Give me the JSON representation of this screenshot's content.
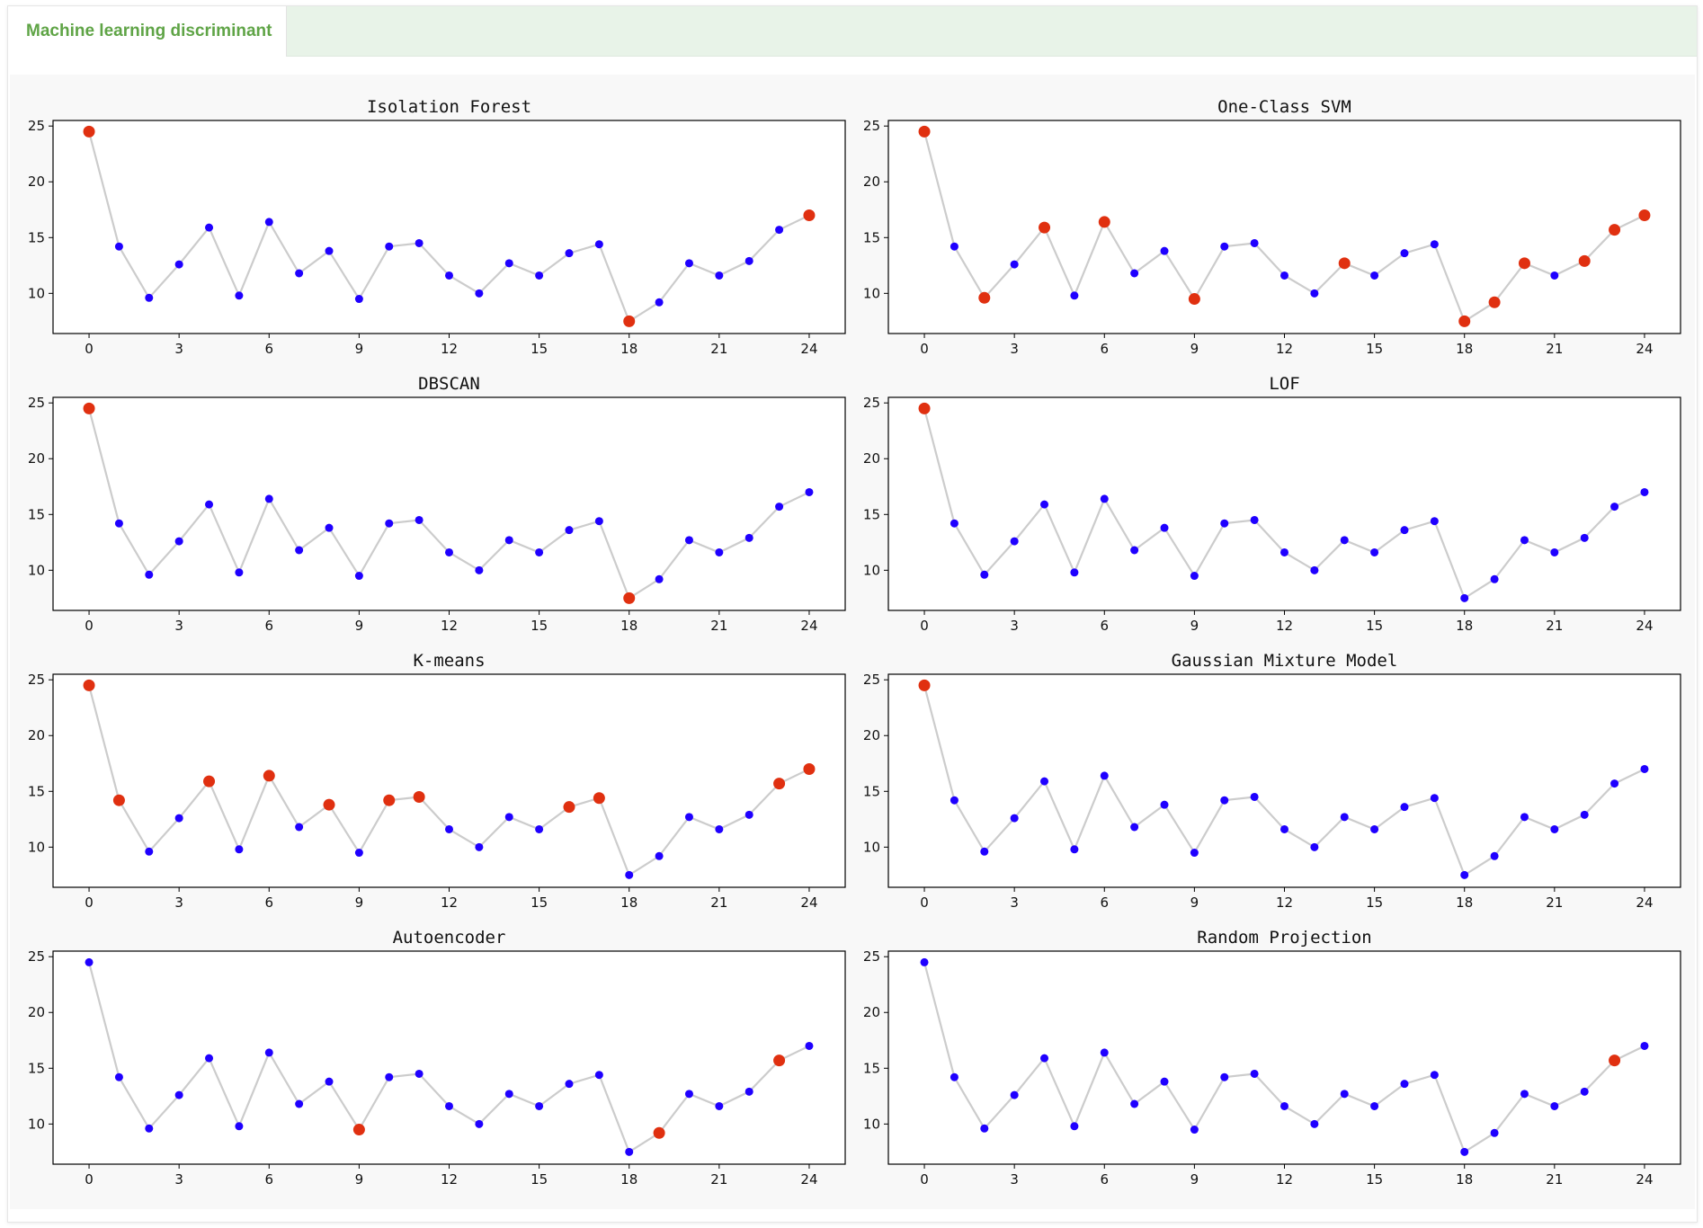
{
  "tabs": [
    {
      "label": "Machine learning discriminant",
      "active": true
    }
  ],
  "colors": {
    "line": "#cccccc",
    "normal": "#1f00ff",
    "anomaly": "#e03010"
  },
  "chart_data": [
    {
      "type": "scatter",
      "title": "Isolation Forest",
      "x": [
        0,
        1,
        2,
        3,
        4,
        5,
        6,
        7,
        8,
        9,
        10,
        11,
        12,
        13,
        14,
        15,
        16,
        17,
        18,
        19,
        20,
        21,
        22,
        23,
        24
      ],
      "y": [
        24.5,
        14.2,
        9.6,
        12.6,
        15.9,
        9.8,
        16.4,
        11.8,
        13.8,
        9.5,
        14.2,
        14.5,
        11.6,
        10.0,
        12.7,
        11.6,
        13.6,
        14.4,
        7.5,
        9.2,
        12.7,
        11.6,
        12.9,
        15.7,
        17.0
      ],
      "anomalies": [
        0,
        18,
        24
      ],
      "xticks": [
        0,
        3,
        6,
        9,
        12,
        15,
        18,
        21,
        24
      ],
      "yticks": [
        10,
        15,
        20,
        25
      ],
      "xlim": [
        -1.2,
        25.2
      ],
      "ylim": [
        6.4,
        25.5
      ]
    },
    {
      "type": "scatter",
      "title": "One-Class SVM",
      "x": [
        0,
        1,
        2,
        3,
        4,
        5,
        6,
        7,
        8,
        9,
        10,
        11,
        12,
        13,
        14,
        15,
        16,
        17,
        18,
        19,
        20,
        21,
        22,
        23,
        24
      ],
      "y": [
        24.5,
        14.2,
        9.6,
        12.6,
        15.9,
        9.8,
        16.4,
        11.8,
        13.8,
        9.5,
        14.2,
        14.5,
        11.6,
        10.0,
        12.7,
        11.6,
        13.6,
        14.4,
        7.5,
        9.2,
        12.7,
        11.6,
        12.9,
        15.7,
        17.0
      ],
      "anomalies": [
        0,
        2,
        4,
        6,
        9,
        14,
        18,
        19,
        20,
        22,
        23,
        24
      ],
      "xticks": [
        0,
        3,
        6,
        9,
        12,
        15,
        18,
        21,
        24
      ],
      "yticks": [
        10,
        15,
        20,
        25
      ],
      "xlim": [
        -1.2,
        25.2
      ],
      "ylim": [
        6.4,
        25.5
      ]
    },
    {
      "type": "scatter",
      "title": "DBSCAN",
      "x": [
        0,
        1,
        2,
        3,
        4,
        5,
        6,
        7,
        8,
        9,
        10,
        11,
        12,
        13,
        14,
        15,
        16,
        17,
        18,
        19,
        20,
        21,
        22,
        23,
        24
      ],
      "y": [
        24.5,
        14.2,
        9.6,
        12.6,
        15.9,
        9.8,
        16.4,
        11.8,
        13.8,
        9.5,
        14.2,
        14.5,
        11.6,
        10.0,
        12.7,
        11.6,
        13.6,
        14.4,
        7.5,
        9.2,
        12.7,
        11.6,
        12.9,
        15.7,
        17.0
      ],
      "anomalies": [
        0,
        18
      ],
      "xticks": [
        0,
        3,
        6,
        9,
        12,
        15,
        18,
        21,
        24
      ],
      "yticks": [
        10,
        15,
        20,
        25
      ],
      "xlim": [
        -1.2,
        25.2
      ],
      "ylim": [
        6.4,
        25.5
      ]
    },
    {
      "type": "scatter",
      "title": "LOF",
      "x": [
        0,
        1,
        2,
        3,
        4,
        5,
        6,
        7,
        8,
        9,
        10,
        11,
        12,
        13,
        14,
        15,
        16,
        17,
        18,
        19,
        20,
        21,
        22,
        23,
        24
      ],
      "y": [
        24.5,
        14.2,
        9.6,
        12.6,
        15.9,
        9.8,
        16.4,
        11.8,
        13.8,
        9.5,
        14.2,
        14.5,
        11.6,
        10.0,
        12.7,
        11.6,
        13.6,
        14.4,
        7.5,
        9.2,
        12.7,
        11.6,
        12.9,
        15.7,
        17.0
      ],
      "anomalies": [
        0
      ],
      "xticks": [
        0,
        3,
        6,
        9,
        12,
        15,
        18,
        21,
        24
      ],
      "yticks": [
        10,
        15,
        20,
        25
      ],
      "xlim": [
        -1.2,
        25.2
      ],
      "ylim": [
        6.4,
        25.5
      ]
    },
    {
      "type": "scatter",
      "title": "K-means",
      "x": [
        0,
        1,
        2,
        3,
        4,
        5,
        6,
        7,
        8,
        9,
        10,
        11,
        12,
        13,
        14,
        15,
        16,
        17,
        18,
        19,
        20,
        21,
        22,
        23,
        24
      ],
      "y": [
        24.5,
        14.2,
        9.6,
        12.6,
        15.9,
        9.8,
        16.4,
        11.8,
        13.8,
        9.5,
        14.2,
        14.5,
        11.6,
        10.0,
        12.7,
        11.6,
        13.6,
        14.4,
        7.5,
        9.2,
        12.7,
        11.6,
        12.9,
        15.7,
        17.0
      ],
      "anomalies": [
        0,
        1,
        4,
        6,
        8,
        10,
        11,
        16,
        17,
        23,
        24
      ],
      "xticks": [
        0,
        3,
        6,
        9,
        12,
        15,
        18,
        21,
        24
      ],
      "yticks": [
        10,
        15,
        20,
        25
      ],
      "xlim": [
        -1.2,
        25.2
      ],
      "ylim": [
        6.4,
        25.5
      ]
    },
    {
      "type": "scatter",
      "title": "Gaussian Mixture Model",
      "x": [
        0,
        1,
        2,
        3,
        4,
        5,
        6,
        7,
        8,
        9,
        10,
        11,
        12,
        13,
        14,
        15,
        16,
        17,
        18,
        19,
        20,
        21,
        22,
        23,
        24
      ],
      "y": [
        24.5,
        14.2,
        9.6,
        12.6,
        15.9,
        9.8,
        16.4,
        11.8,
        13.8,
        9.5,
        14.2,
        14.5,
        11.6,
        10.0,
        12.7,
        11.6,
        13.6,
        14.4,
        7.5,
        9.2,
        12.7,
        11.6,
        12.9,
        15.7,
        17.0
      ],
      "anomalies": [
        0
      ],
      "xticks": [
        0,
        3,
        6,
        9,
        12,
        15,
        18,
        21,
        24
      ],
      "yticks": [
        10,
        15,
        20,
        25
      ],
      "xlim": [
        -1.2,
        25.2
      ],
      "ylim": [
        6.4,
        25.5
      ]
    },
    {
      "type": "scatter",
      "title": "Autoencoder",
      "x": [
        0,
        1,
        2,
        3,
        4,
        5,
        6,
        7,
        8,
        9,
        10,
        11,
        12,
        13,
        14,
        15,
        16,
        17,
        18,
        19,
        20,
        21,
        22,
        23,
        24
      ],
      "y": [
        24.5,
        14.2,
        9.6,
        12.6,
        15.9,
        9.8,
        16.4,
        11.8,
        13.8,
        9.5,
        14.2,
        14.5,
        11.6,
        10.0,
        12.7,
        11.6,
        13.6,
        14.4,
        7.5,
        9.2,
        12.7,
        11.6,
        12.9,
        15.7,
        17.0
      ],
      "anomalies": [
        9,
        19,
        23
      ],
      "xticks": [
        0,
        3,
        6,
        9,
        12,
        15,
        18,
        21,
        24
      ],
      "yticks": [
        10,
        15,
        20,
        25
      ],
      "xlim": [
        -1.2,
        25.2
      ],
      "ylim": [
        6.4,
        25.5
      ]
    },
    {
      "type": "scatter",
      "title": "Random Projection",
      "x": [
        0,
        1,
        2,
        3,
        4,
        5,
        6,
        7,
        8,
        9,
        10,
        11,
        12,
        13,
        14,
        15,
        16,
        17,
        18,
        19,
        20,
        21,
        22,
        23,
        24
      ],
      "y": [
        24.5,
        14.2,
        9.6,
        12.6,
        15.9,
        9.8,
        16.4,
        11.8,
        13.8,
        9.5,
        14.2,
        14.5,
        11.6,
        10.0,
        12.7,
        11.6,
        13.6,
        14.4,
        7.5,
        9.2,
        12.7,
        11.6,
        12.9,
        15.7,
        17.0
      ],
      "anomalies": [
        23
      ],
      "xticks": [
        0,
        3,
        6,
        9,
        12,
        15,
        18,
        21,
        24
      ],
      "yticks": [
        10,
        15,
        20,
        25
      ],
      "xlim": [
        -1.2,
        25.2
      ],
      "ylim": [
        6.4,
        25.5
      ]
    }
  ]
}
